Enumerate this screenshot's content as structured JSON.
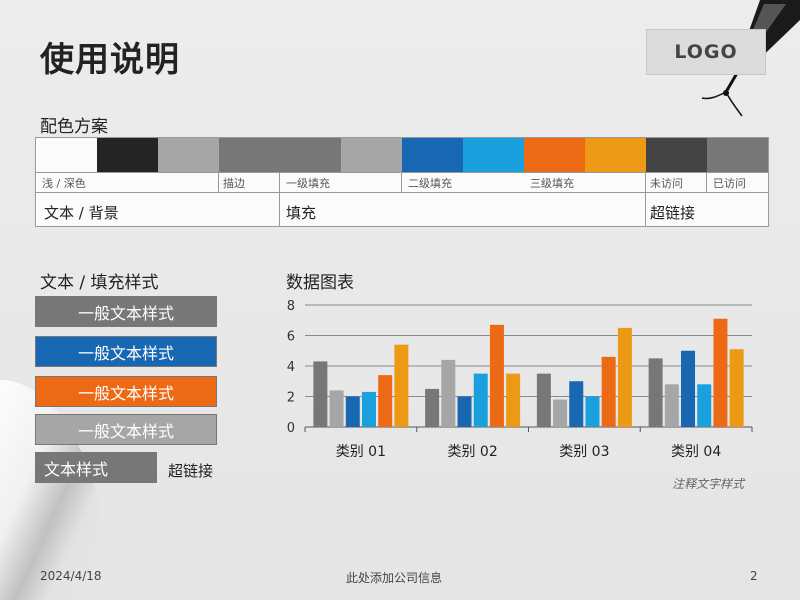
{
  "title": "使用说明",
  "logo": "LOGO",
  "palette": {
    "heading": "配色方案",
    "swatches": [
      "#fbfbfb",
      "#242424",
      "#a6a6a6",
      "#777777",
      "#777777",
      "#a6a6a6",
      "#1767b2",
      "#1aa0dc",
      "#ec6a16",
      "#ec9a16",
      "#444444",
      "#777777"
    ],
    "small_labels": [
      "浅 / 深色",
      "描边",
      "一级填充",
      "二级填充",
      "三级填充",
      "未访问",
      "已访问"
    ],
    "big_labels": [
      "文本 / 背景",
      "填充",
      "超链接"
    ]
  },
  "text_styles": {
    "heading": "文本 / 填充样式",
    "boxes": [
      {
        "label": "一般文本样式",
        "bg": "#777777"
      },
      {
        "label": "一般文本样式",
        "bg": "#1767b2"
      },
      {
        "label": "一般文本样式",
        "bg": "#ec6a16"
      },
      {
        "label": "一般文本样式",
        "bg": "#a6a6a6"
      },
      {
        "label": "文本样式",
        "bg": "#777777"
      }
    ],
    "link": "超链接"
  },
  "chart_heading": "数据图表",
  "chart_data": {
    "type": "bar",
    "title": "",
    "categories": [
      "类别 01",
      "类别 02",
      "类别 03",
      "类别 04"
    ],
    "ylim": [
      0,
      8
    ],
    "yticks": [
      "0",
      "2",
      "4",
      "6",
      "8"
    ],
    "grid": true,
    "colors": [
      "#777777",
      "#a6a6a6",
      "#1767b2",
      "#1aa0dc",
      "#ec6a16",
      "#ec9a16"
    ],
    "series": [
      {
        "values": [
          4.3,
          2.5,
          3.5,
          4.5
        ]
      },
      {
        "values": [
          2.4,
          4.4,
          1.8,
          2.8
        ]
      },
      {
        "values": [
          2.0,
          2.0,
          3.0,
          5.0
        ]
      },
      {
        "values": [
          2.3,
          3.5,
          2.0,
          2.8
        ]
      },
      {
        "values": [
          3.4,
          6.7,
          4.6,
          7.1
        ]
      },
      {
        "values": [
          5.4,
          3.5,
          6.5,
          5.1
        ]
      }
    ]
  },
  "chart_note": "注释文字样式",
  "footer": {
    "date": "2024/4/18",
    "company": "此处添加公司信息",
    "page": "2"
  }
}
